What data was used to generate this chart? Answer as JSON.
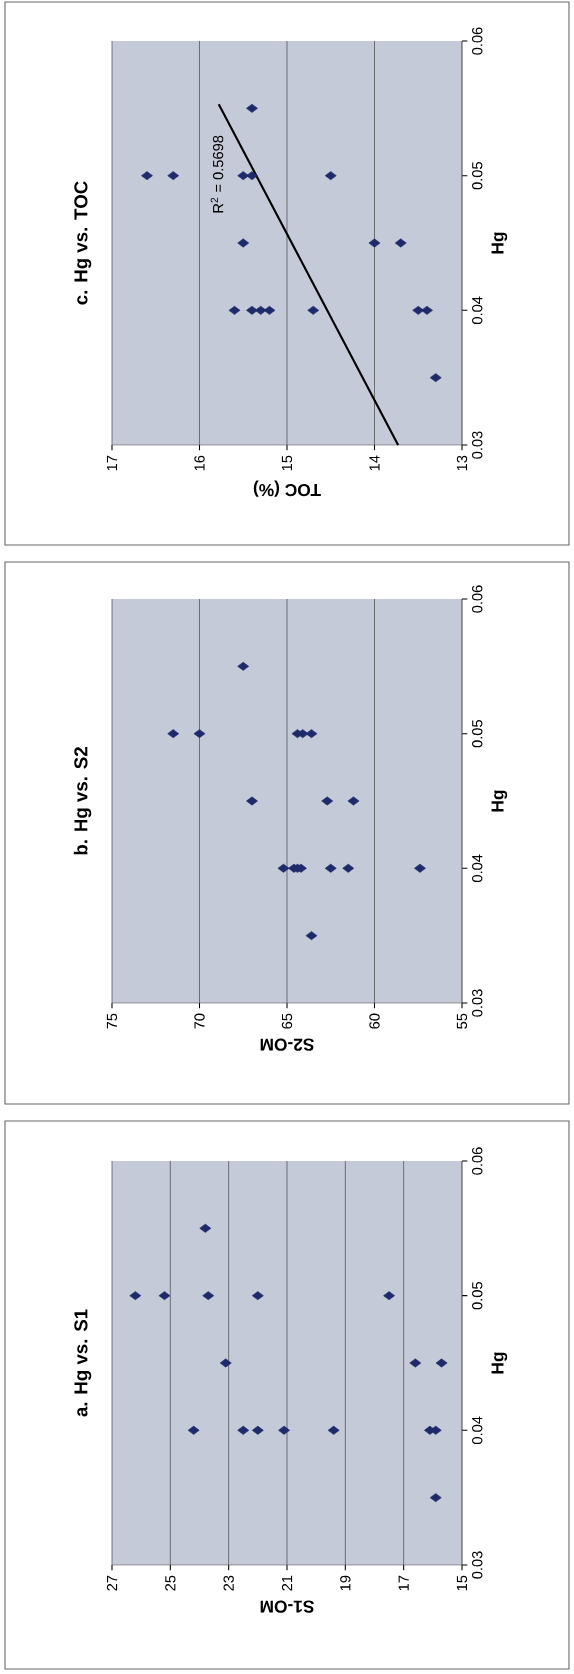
{
  "chart_data": [
    {
      "type": "scatter",
      "title": "a. Hg vs. S1",
      "xlabel": "S1-OM",
      "ylabel": "Hg",
      "xlim": [
        27,
        15
      ],
      "xticks": [
        27,
        25,
        23,
        21,
        19,
        17,
        15
      ],
      "ylim": [
        0.03,
        0.06
      ],
      "yticks": [
        0.03,
        0.04,
        0.05,
        0.06
      ],
      "grid": "x",
      "marker": "diamond",
      "series": [
        {
          "color": "#1f2a6b",
          "values": [
            0.055,
            0.05,
            0.05,
            0.05,
            0.05,
            0.05,
            0.045,
            0.045,
            0.045,
            0.04,
            0.04,
            0.04,
            0.04,
            0.04,
            0.04,
            0.04,
            0.035
          ],
          "x": [
            23.8,
            26.2,
            25.2,
            23.7,
            22.0,
            17.5,
            23.1,
            16.6,
            15.7,
            24.2,
            22.5,
            22.0,
            21.1,
            19.4,
            16.1,
            15.9,
            15.9
          ]
        }
      ]
    },
    {
      "type": "scatter",
      "title": "b. Hg vs. S2",
      "xlabel": "S2-OM",
      "ylabel": "Hg",
      "xlim": [
        75,
        55
      ],
      "xticks": [
        75,
        70,
        65,
        60,
        55
      ],
      "ylim": [
        0.03,
        0.06
      ],
      "yticks": [
        0.03,
        0.04,
        0.05,
        0.06
      ],
      "grid": "x",
      "marker": "diamond",
      "series": [
        {
          "color": "#1f2a6b",
          "values": [
            0.055,
            0.05,
            0.05,
            0.05,
            0.05,
            0.05,
            0.045,
            0.045,
            0.045,
            0.04,
            0.04,
            0.04,
            0.04,
            0.04,
            0.04,
            0.04,
            0.035
          ],
          "x": [
            67.5,
            71.5,
            70.0,
            64.4,
            64.1,
            63.6,
            67.0,
            62.7,
            61.2,
            65.2,
            64.6,
            64.4,
            64.2,
            62.5,
            61.5,
            57.4,
            63.6
          ]
        }
      ]
    },
    {
      "type": "scatter",
      "title": "c. Hg vs. TOC",
      "xlabel": "TOC (%)",
      "ylabel": "Hg",
      "xlim": [
        17,
        13
      ],
      "xticks": [
        17,
        16,
        15,
        14,
        13
      ],
      "ylim": [
        0.03,
        0.06
      ],
      "yticks": [
        0.03,
        0.04,
        0.05,
        0.06
      ],
      "grid": "x",
      "marker": "diamond",
      "annotations": [
        "R$^{2}$ = 0.5698"
      ],
      "series": [
        {
          "color": "#1f2a6b",
          "values": [
            0.055,
            0.05,
            0.05,
            0.05,
            0.05,
            0.05,
            0.045,
            0.045,
            0.045,
            0.04,
            0.04,
            0.04,
            0.04,
            0.04,
            0.04,
            0.04,
            0.035
          ],
          "x": [
            15.4,
            16.6,
            16.3,
            15.5,
            15.4,
            14.5,
            15.5,
            14.0,
            13.7,
            15.6,
            15.4,
            15.3,
            15.2,
            14.7,
            13.5,
            13.4,
            13.3
          ]
        },
        {
          "type": "line",
          "color": "#000000",
          "marker": "none",
          "line_style": "solid",
          "values": [
            0.03,
            0.0553
          ],
          "x": [
            13.73,
            15.78
          ]
        }
      ]
    }
  ]
}
